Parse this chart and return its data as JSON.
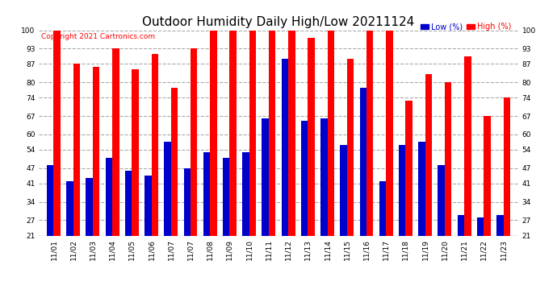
{
  "title": "Outdoor Humidity Daily High/Low 20211124",
  "copyright": "Copyright 2021 Cartronics.com",
  "legend_low": "Low (%)",
  "legend_high": "High (%)",
  "categories": [
    "11/01",
    "11/02",
    "11/03",
    "11/04",
    "11/05",
    "11/06",
    "11/07",
    "11/07",
    "11/08",
    "11/09",
    "11/10",
    "11/11",
    "11/12",
    "11/13",
    "11/14",
    "11/15",
    "11/16",
    "11/17",
    "11/18",
    "11/19",
    "11/20",
    "11/21",
    "11/22",
    "11/23"
  ],
  "high_values": [
    100,
    87,
    86,
    93,
    85,
    91,
    78,
    93,
    100,
    100,
    100,
    100,
    100,
    97,
    100,
    89,
    100,
    100,
    73,
    83,
    80,
    90,
    67,
    74
  ],
  "low_values": [
    48,
    42,
    43,
    51,
    46,
    44,
    57,
    47,
    53,
    51,
    53,
    66,
    89,
    65,
    66,
    56,
    78,
    42,
    56,
    57,
    48,
    29,
    28,
    29
  ],
  "ymin": 21,
  "ymax": 100,
  "yticks": [
    21,
    27,
    34,
    41,
    47,
    54,
    60,
    67,
    74,
    80,
    87,
    93,
    100
  ],
  "bar_width": 0.35,
  "high_color": "#ff0000",
  "low_color": "#0000cc",
  "bg_color": "#ffffff",
  "grid_color": "#aaaaaa",
  "title_fontsize": 11,
  "tick_fontsize": 6.5,
  "label_fontsize": 7,
  "copyright_fontsize": 6.5
}
